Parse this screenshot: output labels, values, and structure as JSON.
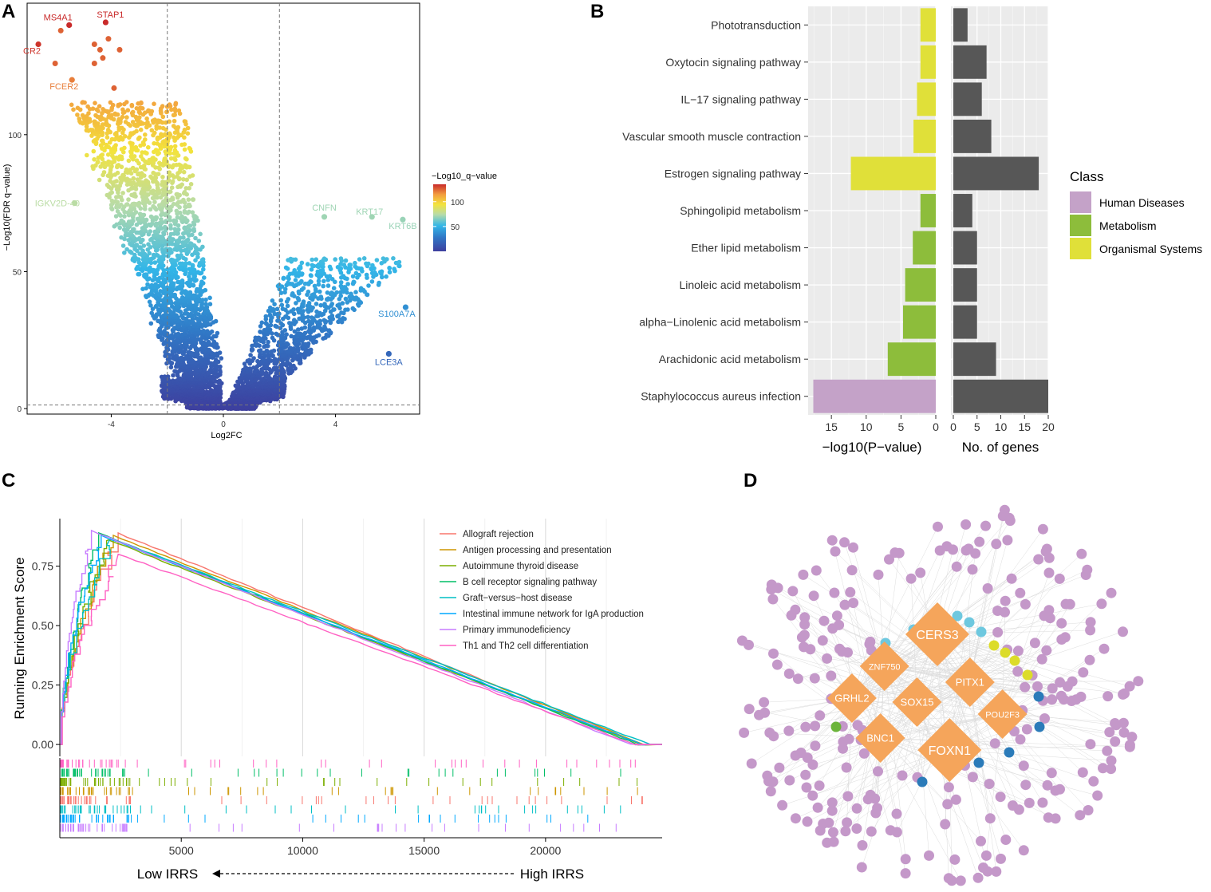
{
  "panels": {
    "a": "A",
    "b": "B",
    "c": "C",
    "d": "D"
  },
  "chart_data": [
    {
      "id": "volcano",
      "type": "scatter",
      "title": "",
      "xlabel": "Log2FC",
      "ylabel": "−Log10(FDR q−value)",
      "xlim": [
        -7,
        7
      ],
      "ylim": [
        -2,
        148
      ],
      "xticks": [
        -4,
        0,
        4
      ],
      "yticks": [
        0,
        50,
        100
      ],
      "thresholds": {
        "x": [
          -2,
          2
        ],
        "y": 1.3
      },
      "colorbar": {
        "title": "−Log10_q−value",
        "ticks": [
          50,
          100
        ],
        "range": [
          0,
          135
        ]
      },
      "labeled_points": [
        {
          "label": "MS4A1",
          "x": -5.5,
          "y": 140
        },
        {
          "label": "STAP1",
          "x": -4.2,
          "y": 141
        },
        {
          "label": "CR2",
          "x": -6.6,
          "y": 133
        },
        {
          "label": "FCER2",
          "x": -5.4,
          "y": 120
        },
        {
          "label": "IGKV2D-40",
          "x": -5.3,
          "y": 75
        },
        {
          "label": "CNFN",
          "x": 3.6,
          "y": 70
        },
        {
          "label": "KRT17",
          "x": 5.3,
          "y": 70
        },
        {
          "label": "KRT6B",
          "x": 6.4,
          "y": 69
        },
        {
          "label": "S100A7A",
          "x": 6.5,
          "y": 37
        },
        {
          "label": "LCE3A",
          "x": 5.9,
          "y": 20
        }
      ]
    },
    {
      "id": "kegg",
      "type": "bar",
      "categories": [
        "Phototransduction",
        "Oxytocin signaling pathway",
        "IL−17 signaling pathway",
        "Vascular smooth muscle contraction",
        "Estrogen signaling pathway",
        "Sphingolipid metabolism",
        "Ether lipid metabolism",
        "Linoleic acid metabolism",
        "alpha−Linolenic acid metabolism",
        "Arachidonic acid metabolism",
        "Staphylococcus aureus infection"
      ],
      "classes": [
        "Organismal Systems",
        "Organismal Systems",
        "Organismal Systems",
        "Organismal Systems",
        "Organismal Systems",
        "Metabolism",
        "Metabolism",
        "Metabolism",
        "Metabolism",
        "Metabolism",
        "Human Diseases"
      ],
      "series": [
        {
          "name": "−log10(P−value)",
          "values": [
            2.2,
            2.2,
            2.7,
            3.2,
            12.2,
            2.2,
            3.3,
            4.4,
            4.7,
            6.9,
            17.6
          ],
          "xlim": [
            0,
            18
          ],
          "ticks": [
            15,
            10,
            5,
            0
          ]
        },
        {
          "name": "No. of genes",
          "values": [
            3,
            7,
            6,
            8,
            18,
            4,
            5,
            5,
            5,
            9,
            20
          ],
          "xlim": [
            0,
            20
          ],
          "ticks": [
            0,
            5,
            10,
            15,
            20
          ]
        }
      ],
      "legend": {
        "title": "Class",
        "placement": "right",
        "items": [
          {
            "label": "Human Diseases",
            "color": "#c4a2c8"
          },
          {
            "label": "Metabolism",
            "color": "#8dbd3b"
          },
          {
            "label": "Organismal Systems",
            "color": "#e0e039"
          }
        ]
      },
      "bar_color_genes": "#575757"
    },
    {
      "id": "gsea",
      "type": "line",
      "ylabel": "Running Enrichment Score",
      "xlim": [
        0,
        24800
      ],
      "ylim": [
        -0.05,
        0.95
      ],
      "xticks": [
        5000,
        10000,
        15000,
        20000
      ],
      "yticks": [
        0.0,
        0.25,
        0.5,
        0.75
      ],
      "arrow_left": "Low IRRS",
      "arrow_right": "High IRRS",
      "series": [
        {
          "name": "Allograft rejection",
          "color": "#f8766d",
          "peak": 0.89,
          "peak_x": 2400,
          "end_x": 24000
        },
        {
          "name": "Antigen processing and presentation",
          "color": "#cd9600",
          "peak": 0.88,
          "peak_x": 2200,
          "end_x": 24100
        },
        {
          "name": "Autoimmune thyroid disease",
          "color": "#7cae00",
          "peak": 0.86,
          "peak_x": 2000,
          "end_x": 23900
        },
        {
          "name": "B cell receptor signaling pathway",
          "color": "#00be67",
          "peak": 0.89,
          "peak_x": 1600,
          "end_x": 23800
        },
        {
          "name": "Graft−versus−host disease",
          "color": "#00bfc4",
          "peak": 0.87,
          "peak_x": 2100,
          "end_x": 24300
        },
        {
          "name": "Intestinal immune network for IgA production",
          "color": "#00a9ff",
          "peak": 0.88,
          "peak_x": 1700,
          "end_x": 24000
        },
        {
          "name": "Primary immunodeficiency",
          "color": "#c77cff",
          "peak": 0.9,
          "peak_x": 1300,
          "end_x": 23500
        },
        {
          "name": "Th1 and Th2 cell differentiation",
          "color": "#ff61c3",
          "peak": 0.8,
          "peak_x": 2400,
          "end_x": 23700
        }
      ]
    },
    {
      "id": "network",
      "type": "network",
      "hubs": [
        {
          "label": "CERS3",
          "x": 0.5,
          "y": 0.36,
          "size": "l"
        },
        {
          "label": "ZNF750",
          "x": 0.37,
          "y": 0.44,
          "size": "m"
        },
        {
          "label": "PITX1",
          "x": 0.58,
          "y": 0.48,
          "size": "m"
        },
        {
          "label": "GRHL2",
          "x": 0.29,
          "y": 0.52,
          "size": "m"
        },
        {
          "label": "SOX15",
          "x": 0.45,
          "y": 0.53,
          "size": "m"
        },
        {
          "label": "POU2F3",
          "x": 0.66,
          "y": 0.56,
          "size": "m"
        },
        {
          "label": "BNC1",
          "x": 0.36,
          "y": 0.62,
          "size": "m"
        },
        {
          "label": "FOXN1",
          "x": 0.53,
          "y": 0.65,
          "size": "l"
        }
      ],
      "colors": {
        "hub": "#f5a55b",
        "leaf": "#c498c9",
        "teal": "#6ec8df",
        "yellow": "#dcdc2a",
        "blue": "#2b7bb9",
        "green": "#6bb43a"
      }
    }
  ]
}
